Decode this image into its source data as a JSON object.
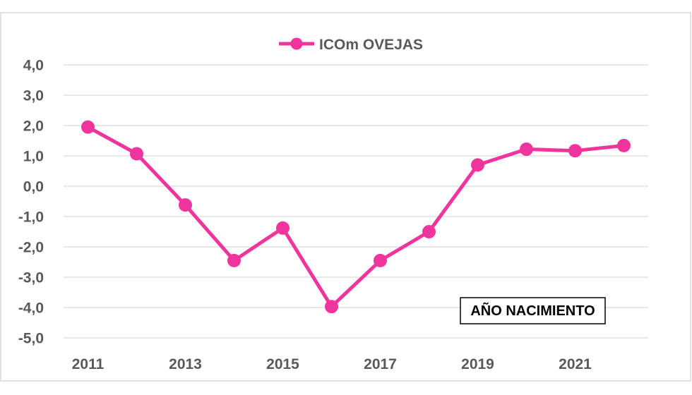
{
  "chart_data": {
    "type": "line",
    "title": "",
    "xlabel": "",
    "ylabel": "",
    "x": [
      2011,
      2012,
      2013,
      2014,
      2015,
      2016,
      2017,
      2018,
      2019,
      2020,
      2021,
      2022
    ],
    "series": [
      {
        "name": "ICOm OVEJAS",
        "color": "#F0349E",
        "values": [
          1.95,
          1.07,
          -0.62,
          -2.45,
          -1.38,
          -3.97,
          -2.45,
          -1.5,
          0.7,
          1.22,
          1.17,
          1.34
        ]
      }
    ],
    "ylim": [
      -5.0,
      4.0
    ],
    "y_ticks": [
      "4,0",
      "3,0",
      "2,0",
      "1,0",
      "0,0",
      "-1,0",
      "-2,0",
      "-3,0",
      "-4,0",
      "-5,0"
    ],
    "y_tick_values": [
      4,
      3,
      2,
      1,
      0,
      -1,
      -2,
      -3,
      -4,
      -5
    ],
    "x_tick_labels": [
      "2011",
      "2013",
      "2015",
      "2017",
      "2019",
      "2021"
    ],
    "x_tick_values": [
      2011,
      2013,
      2015,
      2017,
      2019,
      2021
    ],
    "grid": true,
    "legend_position": "top-center",
    "annotation": "AÑO NACIMIENTO",
    "colors": {
      "line": "#F0349E",
      "grid": "#D9D9D9",
      "tick_text": "#595959",
      "border": "#D9D9D9"
    }
  }
}
